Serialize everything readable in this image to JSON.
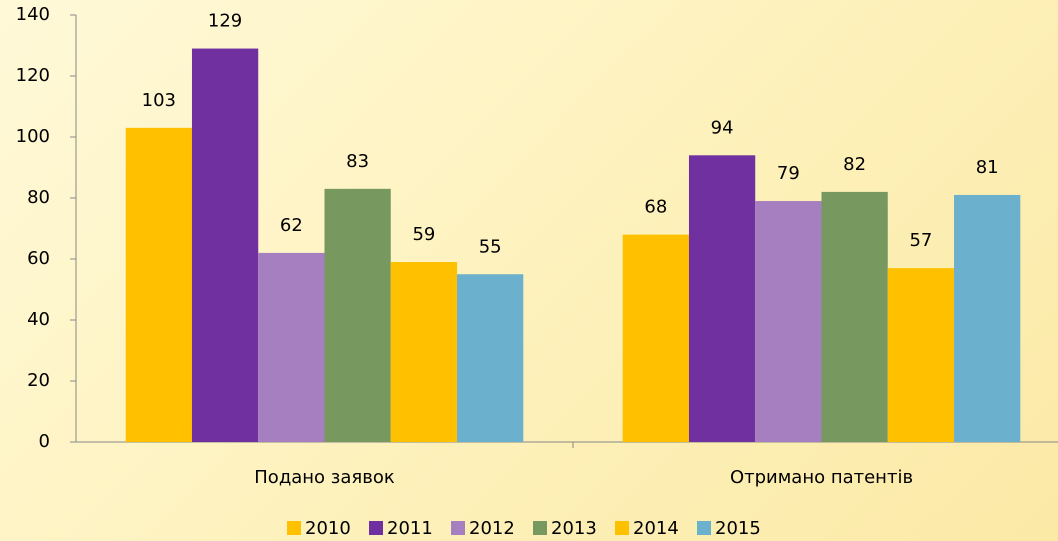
{
  "chart_data": {
    "type": "bar",
    "categories": [
      "Подано заявок",
      "Отримано патентів"
    ],
    "series": [
      {
        "name": "2010",
        "color": "#ffc000",
        "values": [
          103,
          68
        ]
      },
      {
        "name": "2011",
        "color": "#7030a0",
        "values": [
          129,
          94
        ]
      },
      {
        "name": "2012",
        "color": "#a57fc0",
        "values": [
          62,
          79
        ]
      },
      {
        "name": "2013",
        "color": "#77995f",
        "values": [
          83,
          82
        ]
      },
      {
        "name": "2014",
        "color": "#ffc000",
        "values": [
          59,
          57
        ]
      },
      {
        "name": "2015",
        "color": "#6bb0cc",
        "values": [
          55,
          81
        ]
      }
    ],
    "ylim": [
      0,
      140
    ],
    "yticks": [
      0,
      20,
      40,
      60,
      80,
      100,
      120,
      140
    ],
    "grid": false,
    "legend": "bottom"
  }
}
